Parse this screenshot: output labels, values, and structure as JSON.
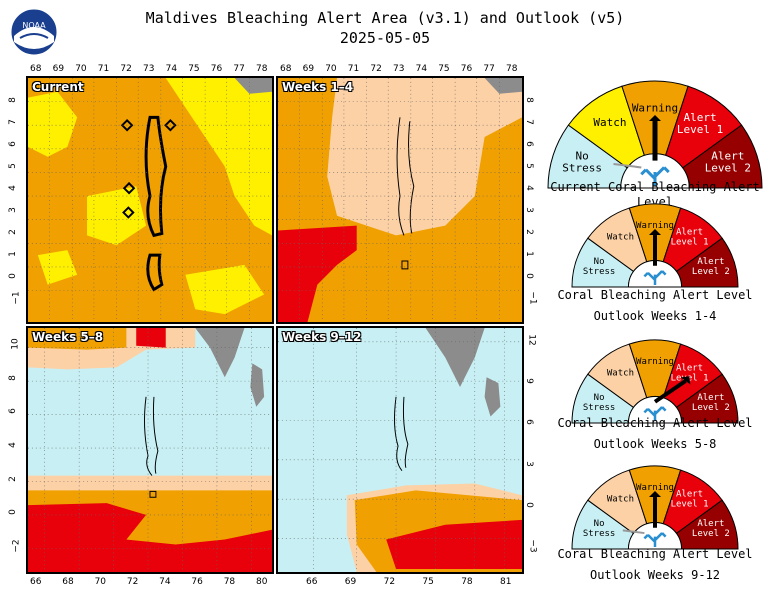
{
  "title": {
    "line1": "Maldives Bleaching Alert Area (v3.1) and Outlook (v5)",
    "line2": "2025-05-05"
  },
  "logo": {
    "text": "NOAA"
  },
  "colors": {
    "no_stress": "#c8f0f4",
    "watch_outlook": "#fcd1a6",
    "watch_current": "#fff000",
    "warning": "#f0a000",
    "alert1": "#e8000a",
    "alert2": "#960000",
    "land": "#8c8c8c",
    "grid": "#888888"
  },
  "panels": {
    "current": {
      "label": "Current",
      "top_lon_ticks": [
        "68",
        "69",
        "70",
        "71",
        "72",
        "73",
        "74",
        "75",
        "76",
        "77",
        "78"
      ],
      "left_lat_ticks": [
        "8",
        "7",
        "6",
        "5",
        "4",
        "3",
        "2",
        "1",
        "0",
        "−1"
      ]
    },
    "weeks_1_4": {
      "label": "Weeks 1–4",
      "top_lon_ticks": [
        "68",
        "69",
        "70",
        "71",
        "72",
        "73",
        "74",
        "75",
        "76",
        "77",
        "78"
      ],
      "right_lat_ticks": [
        "8",
        "7",
        "6",
        "5",
        "4",
        "3",
        "2",
        "1",
        "0",
        "−1"
      ]
    },
    "weeks_5_8": {
      "label": "Weeks 5–8",
      "bottom_lon_ticks": [
        "66",
        "68",
        "70",
        "72",
        "74",
        "76",
        "78",
        "80"
      ],
      "left_lat_ticks": [
        "10",
        "8",
        "6",
        "4",
        "2",
        "0",
        "−2"
      ]
    },
    "weeks_9_12": {
      "label": "Weeks 9–12",
      "bottom_lon_ticks": [
        "66",
        "69",
        "72",
        "75",
        "78",
        "81"
      ],
      "right_lat_ticks": [
        "12",
        "9",
        "6",
        "3",
        "0",
        "−3"
      ]
    }
  },
  "gauges": [
    {
      "labels": {
        "no_stress": "No Stress",
        "watch": "Watch",
        "warning": "Warning",
        "alert1": "Alert Level 1",
        "alert2": "Alert Level 2"
      },
      "watch_color": "#fff000",
      "needle_level": "warning",
      "caption": [
        "Current Coral Bleaching Alert Level"
      ]
    },
    {
      "labels": {
        "no_stress": "No Stress",
        "watch": "Watch",
        "warning": "Warning",
        "alert1": "Alert Level 1",
        "alert2": "Alert Level 2"
      },
      "watch_color": "#fcd1a6",
      "needle_level": "warning",
      "caption": [
        "Coral Bleaching Alert Level",
        "Outlook Weeks 1-4"
      ]
    },
    {
      "labels": {
        "no_stress": "No Stress",
        "watch": "Watch",
        "warning": "Warning",
        "alert1": "Alert Level 1",
        "alert2": "Alert Level 2"
      },
      "watch_color": "#fcd1a6",
      "needle_level": "alert1",
      "caption": [
        "Coral Bleaching Alert Level",
        "Outlook Weeks 5-8"
      ]
    },
    {
      "labels": {
        "no_stress": "No Stress",
        "watch": "Watch",
        "warning": "Warning",
        "alert1": "Alert Level 1",
        "alert2": "Alert Level 2"
      },
      "watch_color": "#fcd1a6",
      "needle_level": "warning",
      "caption": [
        "Coral Bleaching Alert Level",
        "Outlook Weeks 9-12"
      ]
    }
  ]
}
